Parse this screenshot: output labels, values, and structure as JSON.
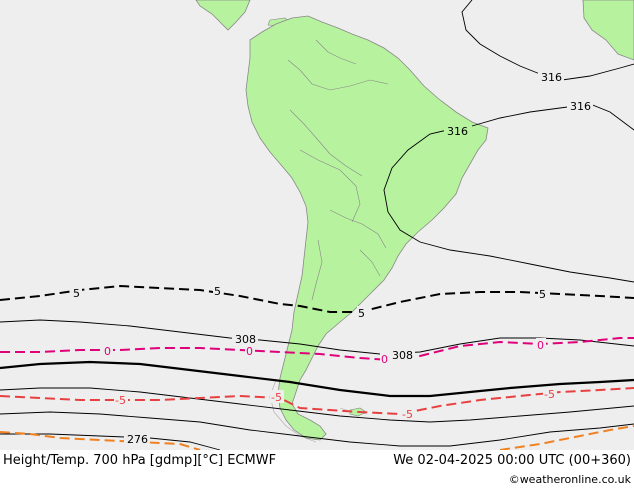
{
  "footer": {
    "left_caption": "Height/Temp. 700 hPa [gdmp][°C] ECMWF",
    "right_caption": "We 02-04-2025 00:00 UTC (00+360)",
    "credit": "©weatheronline.co.uk"
  },
  "map": {
    "colors": {
      "ocean": "#eeeeee",
      "land": "#b7f29f",
      "coast": "#888888",
      "shelf": "#999999",
      "height_contour": "#000000",
      "temp_neg5": "#e84040",
      "temp_0": "#e0007a",
      "temp_5": "#000000",
      "temp_10": "#f08020"
    },
    "contour_labels": [
      {
        "id": "h316-a",
        "text": "316"
      },
      {
        "id": "h316-b",
        "text": "316"
      },
      {
        "id": "h316-c",
        "text": "316"
      },
      {
        "id": "h308-a",
        "text": "308"
      },
      {
        "id": "h308-b",
        "text": "308"
      },
      {
        "id": "h276",
        "text": "276"
      },
      {
        "id": "t5-a",
        "text": "5"
      },
      {
        "id": "t5-b",
        "text": "5"
      },
      {
        "id": "t5-c",
        "text": "5"
      },
      {
        "id": "t5-d",
        "text": "5"
      },
      {
        "id": "t0-a",
        "text": "0"
      },
      {
        "id": "t0-b",
        "text": "0"
      },
      {
        "id": "t0-c",
        "text": "0"
      },
      {
        "id": "t0-d",
        "text": "0"
      },
      {
        "id": "tm5-a",
        "text": "-5"
      },
      {
        "id": "tm5-b",
        "text": "-5"
      },
      {
        "id": "tm5-c",
        "text": "-5"
      },
      {
        "id": "tm5-d",
        "text": "-5"
      }
    ]
  }
}
